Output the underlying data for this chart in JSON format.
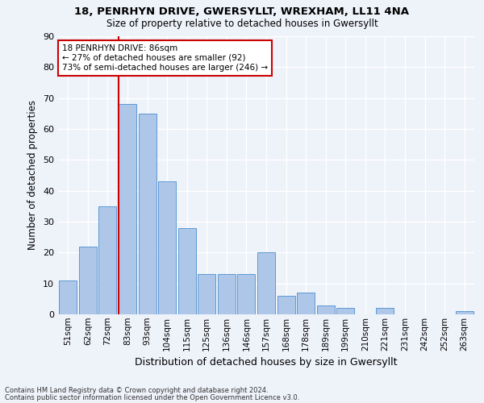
{
  "title1": "18, PENRHYN DRIVE, GWERSYLLT, WREXHAM, LL11 4NA",
  "title2": "Size of property relative to detached houses in Gwersyllt",
  "xlabel": "Distribution of detached houses by size in Gwersyllt",
  "ylabel": "Number of detached properties",
  "bar_labels": [
    "51sqm",
    "62sqm",
    "72sqm",
    "83sqm",
    "93sqm",
    "104sqm",
    "115sqm",
    "125sqm",
    "136sqm",
    "146sqm",
    "157sqm",
    "168sqm",
    "178sqm",
    "189sqm",
    "199sqm",
    "210sqm",
    "221sqm",
    "231sqm",
    "242sqm",
    "252sqm",
    "263sqm"
  ],
  "bar_values": [
    11,
    22,
    35,
    68,
    65,
    43,
    28,
    13,
    13,
    13,
    20,
    6,
    7,
    3,
    2,
    0,
    2,
    0,
    0,
    0,
    1
  ],
  "bar_color": "#aec6e8",
  "bar_edge_color": "#5b9bd5",
  "annotation_title": "18 PENRHYN DRIVE: 86sqm",
  "annotation_line1": "← 27% of detached houses are smaller (92)",
  "annotation_line2": "73% of semi-detached houses are larger (246) →",
  "red_line_bin_index": 3,
  "ylim": [
    0,
    90
  ],
  "yticks": [
    0,
    10,
    20,
    30,
    40,
    50,
    60,
    70,
    80,
    90
  ],
  "footer1": "Contains HM Land Registry data © Crown copyright and database right 2024.",
  "footer2": "Contains public sector information licensed under the Open Government Licence v3.0.",
  "background_color": "#eef2f9",
  "grid_color": "#ffffff",
  "annotation_box_color": "#ffffff",
  "annotation_box_edge": "#cc0000",
  "red_line_color": "#cc0000",
  "bar_width": 0.9
}
